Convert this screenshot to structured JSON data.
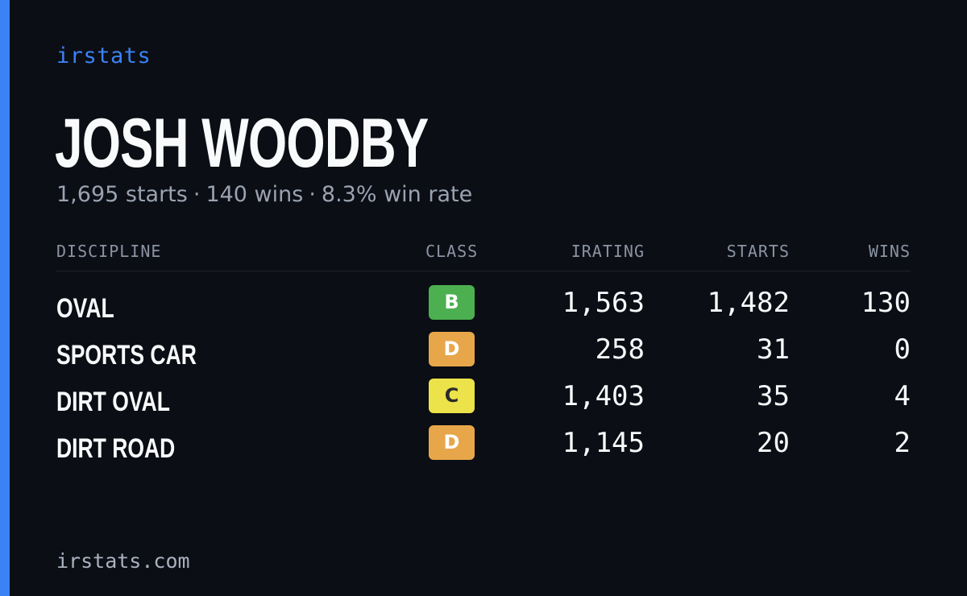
{
  "brand": "irstats",
  "driver": {
    "name": "JOSH WOODBY",
    "starts_text": "1,695 starts",
    "wins_text": "140 wins",
    "win_rate_text": "8.3% win rate",
    "separator": "·"
  },
  "table": {
    "headers": {
      "discipline": "DISCIPLINE",
      "class": "CLASS",
      "irating": "IRATING",
      "starts": "STARTS",
      "wins": "WINS"
    },
    "rows": [
      {
        "discipline": "OVAL",
        "class": "B",
        "class_color": "#4caf50",
        "class_text_color": "#ffffff",
        "irating": "1,563",
        "starts": "1,482",
        "wins": "130"
      },
      {
        "discipline": "SPORTS CAR",
        "class": "D",
        "class_color": "#e8a64a",
        "class_text_color": "#ffffff",
        "irating": "258",
        "starts": "31",
        "wins": "0"
      },
      {
        "discipline": "DIRT OVAL",
        "class": "C",
        "class_color": "#ece24a",
        "class_text_color": "#2b2b2b",
        "irating": "1,403",
        "starts": "35",
        "wins": "4"
      },
      {
        "discipline": "DIRT ROAD",
        "class": "D",
        "class_color": "#e8a64a",
        "class_text_color": "#ffffff",
        "irating": "1,145",
        "starts": "20",
        "wins": "2"
      }
    ]
  },
  "footer": "irstats.com",
  "colors": {
    "background": "#0b0e14",
    "accent": "#3b82f6",
    "muted_text": "#9aa3b2"
  }
}
